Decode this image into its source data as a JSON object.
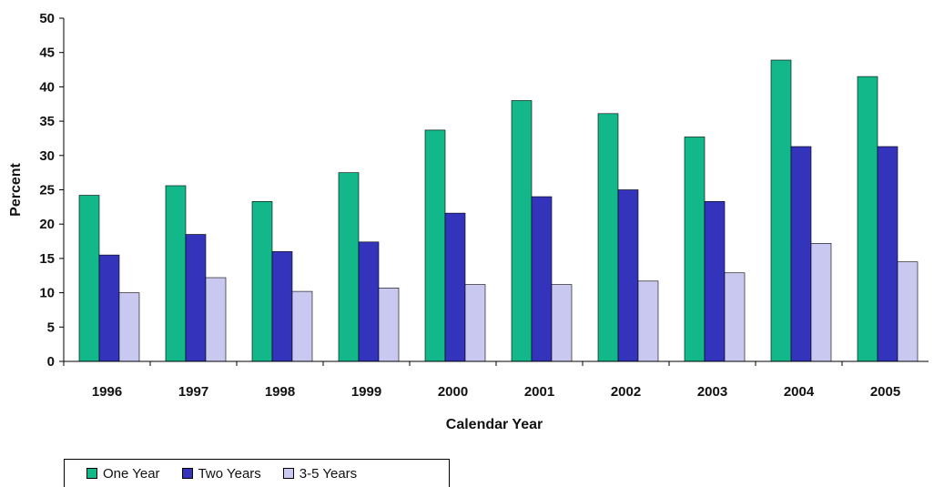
{
  "chart_data": {
    "type": "bar",
    "title": "",
    "xlabel": "Calendar Year",
    "ylabel": "Percent",
    "ylim": [
      0,
      50
    ],
    "yticks": [
      0,
      5,
      10,
      15,
      20,
      25,
      30,
      35,
      40,
      45,
      50
    ],
    "categories": [
      "1996",
      "1997",
      "1998",
      "1999",
      "2000",
      "2001",
      "2002",
      "2003",
      "2004",
      "2005"
    ],
    "series": [
      {
        "name": "One Year",
        "color": "#12b88a",
        "values": [
          24.2,
          25.6,
          23.3,
          27.5,
          33.7,
          38.0,
          36.1,
          32.7,
          43.9,
          41.5
        ]
      },
      {
        "name": "Two Years",
        "color": "#3333bb",
        "values": [
          15.5,
          18.5,
          16.0,
          17.4,
          21.6,
          24.0,
          25.0,
          23.3,
          31.3,
          31.3
        ]
      },
      {
        "name": "3-5 Years",
        "color": "#c8c8f0",
        "values": [
          10.0,
          12.2,
          10.2,
          10.7,
          11.2,
          11.2,
          11.7,
          12.9,
          17.2,
          14.5
        ]
      }
    ],
    "legend_position": "bottom-left",
    "grid": false
  }
}
